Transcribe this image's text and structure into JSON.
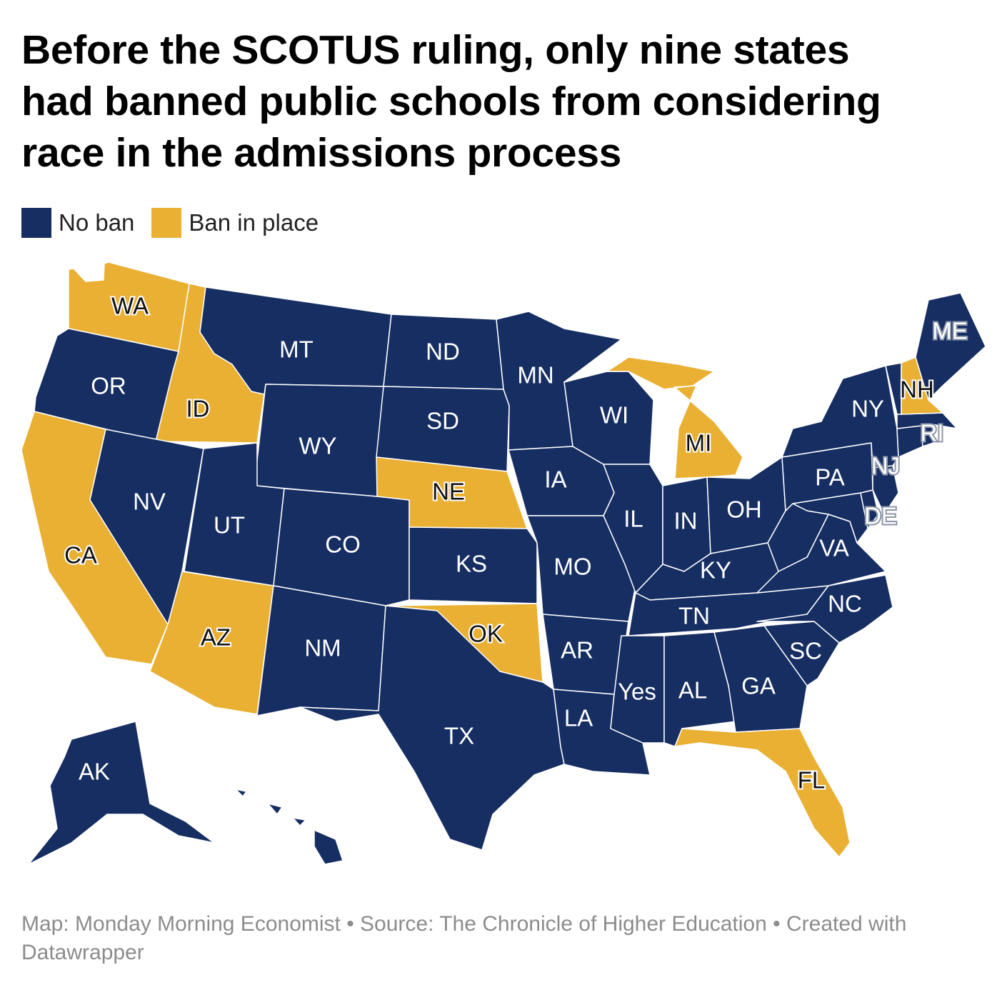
{
  "title_lines": [
    "Before the SCOTUS ruling, only nine states",
    "had banned public schools from considering",
    "race in the admissions process"
  ],
  "legend": [
    {
      "label": "No ban",
      "color": "#172e63"
    },
    {
      "label": "Ban in place",
      "color": "#e9b034"
    }
  ],
  "colors": {
    "no_ban": "#172e63",
    "ban": "#e9b034",
    "border": "#ffffff"
  },
  "states": [
    {
      "code": "WA",
      "label": "WA",
      "ban": true
    },
    {
      "code": "OR",
      "label": "OR",
      "ban": false
    },
    {
      "code": "CA",
      "label": "CA",
      "ban": true
    },
    {
      "code": "ID",
      "label": "ID",
      "ban": true
    },
    {
      "code": "NV",
      "label": "NV",
      "ban": false
    },
    {
      "code": "MT",
      "label": "MT",
      "ban": false
    },
    {
      "code": "WY",
      "label": "WY",
      "ban": false
    },
    {
      "code": "UT",
      "label": "UT",
      "ban": false
    },
    {
      "code": "AZ",
      "label": "AZ",
      "ban": true
    },
    {
      "code": "CO",
      "label": "CO",
      "ban": false
    },
    {
      "code": "NM",
      "label": "NM",
      "ban": false
    },
    {
      "code": "ND",
      "label": "ND",
      "ban": false
    },
    {
      "code": "SD",
      "label": "SD",
      "ban": false
    },
    {
      "code": "NE",
      "label": "NE",
      "ban": true
    },
    {
      "code": "KS",
      "label": "KS",
      "ban": false
    },
    {
      "code": "OK",
      "label": "OK",
      "ban": true
    },
    {
      "code": "TX",
      "label": "TX",
      "ban": false
    },
    {
      "code": "MN",
      "label": "MN",
      "ban": false
    },
    {
      "code": "IA",
      "label": "IA",
      "ban": false
    },
    {
      "code": "MO",
      "label": "MO",
      "ban": false
    },
    {
      "code": "AR",
      "label": "AR",
      "ban": false
    },
    {
      "code": "LA",
      "label": "LA",
      "ban": false
    },
    {
      "code": "WI",
      "label": "WI",
      "ban": false
    },
    {
      "code": "IL",
      "label": "IL",
      "ban": false
    },
    {
      "code": "MI",
      "label": "MI",
      "ban": true
    },
    {
      "code": "IN",
      "label": "IN",
      "ban": false
    },
    {
      "code": "OH",
      "label": "OH",
      "ban": false
    },
    {
      "code": "KY",
      "label": "KY",
      "ban": false
    },
    {
      "code": "TN",
      "label": "TN",
      "ban": false
    },
    {
      "code": "MS",
      "label": "Yes",
      "ban": false
    },
    {
      "code": "AL",
      "label": "AL",
      "ban": false
    },
    {
      "code": "GA",
      "label": "GA",
      "ban": false
    },
    {
      "code": "FL",
      "label": "FL",
      "ban": true
    },
    {
      "code": "SC",
      "label": "SC",
      "ban": false
    },
    {
      "code": "NC",
      "label": "NC",
      "ban": false
    },
    {
      "code": "VA",
      "label": "VA",
      "ban": false
    },
    {
      "code": "WV",
      "label": "",
      "ban": false
    },
    {
      "code": "MD",
      "label": "",
      "ban": false
    },
    {
      "code": "DE",
      "label": "DE",
      "ban": false
    },
    {
      "code": "NJ",
      "label": "NJ",
      "ban": false
    },
    {
      "code": "PA",
      "label": "PA",
      "ban": false
    },
    {
      "code": "NY",
      "label": "NY",
      "ban": false
    },
    {
      "code": "CT",
      "label": "",
      "ban": false
    },
    {
      "code": "RI",
      "label": "RI",
      "ban": false
    },
    {
      "code": "MA",
      "label": "",
      "ban": false
    },
    {
      "code": "VT",
      "label": "",
      "ban": false
    },
    {
      "code": "NH",
      "label": "NH",
      "ban": true
    },
    {
      "code": "ME",
      "label": "ME",
      "ban": false
    },
    {
      "code": "AK",
      "label": "AK",
      "ban": false
    },
    {
      "code": "HI",
      "label": "",
      "ban": false
    }
  ],
  "footer": "Map: Monday Morning Economist • Source: The Chronicle of Higher Education • Created with Datawrapper"
}
